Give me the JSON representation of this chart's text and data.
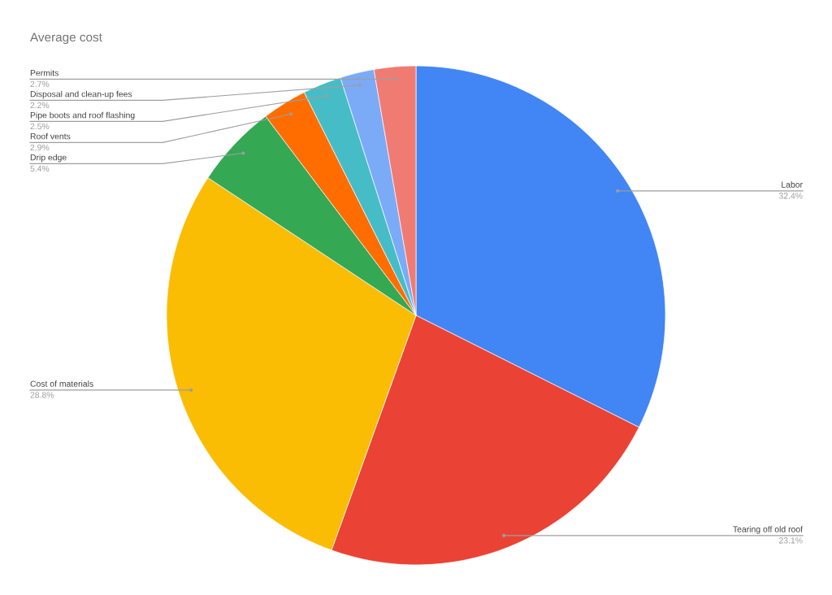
{
  "chart_data": {
    "type": "pie",
    "title": "Average cost",
    "categories": [
      "Labor",
      "Tearing off old roof",
      "Cost of materials",
      "Drip edge",
      "Roof vents",
      "Pipe boots and roof flashing",
      "Disposal and clean-up fees",
      "Permits"
    ],
    "values": [
      32.4,
      23.1,
      28.8,
      5.4,
      2.9,
      2.5,
      2.2,
      2.7
    ],
    "colors": [
      "#4285f4",
      "#ea4335",
      "#fbbc04",
      "#34a853",
      "#ff6d01",
      "#46bdc6",
      "#7baaf7",
      "#f07b72"
    ],
    "value_labels": [
      "32.4%",
      "23.1%",
      "28.8%",
      "5.4%",
      "2.9%",
      "2.5%",
      "2.2%",
      "2.7%"
    ],
    "legend": false
  }
}
